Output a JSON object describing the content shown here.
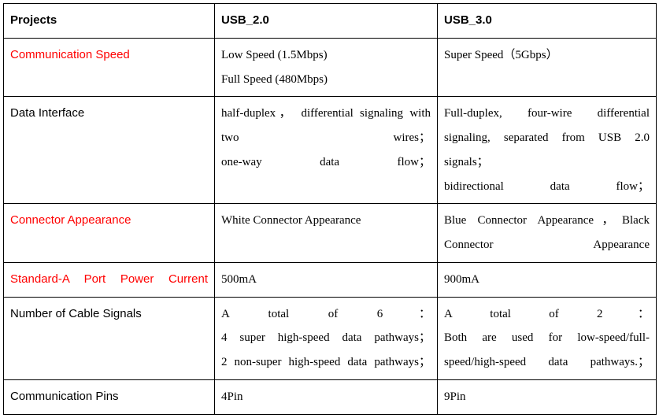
{
  "table": {
    "headers": [
      "Projects",
      "USB_2.0",
      "USB_3.0"
    ],
    "rows": [
      {
        "label": "Communication Speed",
        "red": true,
        "usb2": "Low Speed (1.5Mbps)\nFull Speed (480Mbps)",
        "usb3": "Super Speed（5Gbps）",
        "usb2_justify": false,
        "usb3_justify": false
      },
      {
        "label": "Data Interface",
        "red": false,
        "usb2": "half-duplex， differential signaling with two wires；\none-way data flow；",
        "usb3": "Full-duplex, four-wire differential signaling, separated from USB 2.0 signals；\nbidirectional data flow；",
        "usb2_justify": true,
        "usb3_justify": true
      },
      {
        "label": "Connector Appearance",
        "red": true,
        "usb2": "White Connector Appearance",
        "usb3": "Blue Connector Appearance，Black Connector Appearance",
        "usb2_justify": false,
        "usb3_justify": true
      },
      {
        "label": "Standard-A Port Power Current",
        "red": true,
        "label_justify": true,
        "usb2": "500mA",
        "usb3": "900mA",
        "usb2_justify": false,
        "usb3_justify": false
      },
      {
        "label": "Number of Cable Signals",
        "red": false,
        "usb2": "A total of 6：\n4 super high-speed data pathways；\n2 non-super high-speed data pathways；",
        "usb3": "A total of 2：\nBoth are used for low-speed/full-speed/high-speed data pathways.；",
        "usb2_justify": true,
        "usb3_justify": true
      },
      {
        "label": "Communication Pins",
        "red": false,
        "usb2": "4Pin",
        "usb3": "9Pin",
        "usb2_justify": false,
        "usb3_justify": false
      }
    ]
  }
}
